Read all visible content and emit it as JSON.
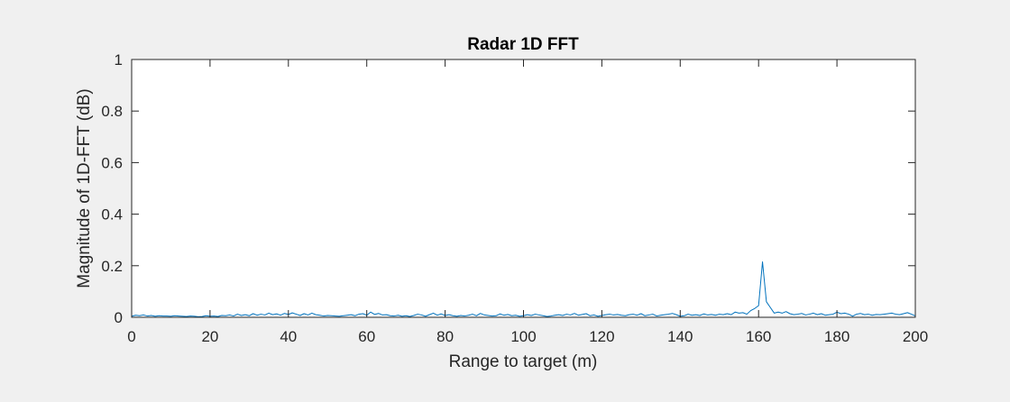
{
  "chart_data": {
    "type": "line",
    "title": "Radar 1D FFT",
    "xlabel": "Range to target (m)",
    "ylabel": "Magnitude of 1D-FFT (dB)",
    "xlim": [
      0,
      200
    ],
    "ylim": [
      0,
      1
    ],
    "xticks": [
      0,
      20,
      40,
      60,
      80,
      100,
      120,
      140,
      160,
      180,
      200
    ],
    "yticks": [
      0,
      0.2,
      0.4,
      0.6,
      0.8,
      1
    ],
    "grid": false,
    "legend": "none",
    "colors": {
      "line": "#0072bd",
      "axes": "#262626",
      "background": "#f0f0f0",
      "plot_area": "#ffffff"
    },
    "series": [
      {
        "x": [
          0,
          1,
          2,
          3,
          4,
          5,
          6,
          7,
          8,
          9,
          10,
          11,
          12,
          13,
          14,
          15,
          16,
          17,
          18,
          19,
          20,
          21,
          22,
          23,
          24,
          25,
          26,
          27,
          28,
          29,
          30,
          31,
          32,
          33,
          34,
          35,
          36,
          37,
          38,
          39,
          40,
          41,
          42,
          43,
          44,
          45,
          46,
          47,
          48,
          49,
          50,
          51,
          52,
          53,
          54,
          55,
          56,
          57,
          58,
          59,
          60,
          61,
          62,
          63,
          64,
          65,
          66,
          67,
          68,
          69,
          70,
          71,
          72,
          73,
          74,
          75,
          76,
          77,
          78,
          79,
          80,
          81,
          82,
          83,
          84,
          85,
          86,
          87,
          88,
          89,
          90,
          91,
          92,
          93,
          94,
          95,
          96,
          97,
          98,
          99,
          100,
          101,
          102,
          103,
          104,
          105,
          106,
          107,
          108,
          109,
          110,
          111,
          112,
          113,
          114,
          115,
          116,
          117,
          118,
          119,
          120,
          121,
          122,
          123,
          124,
          125,
          126,
          127,
          128,
          129,
          130,
          131,
          132,
          133,
          134,
          135,
          136,
          137,
          138,
          139,
          140,
          141,
          142,
          143,
          144,
          145,
          146,
          147,
          148,
          149,
          150,
          151,
          152,
          153,
          154,
          155,
          156,
          157,
          158,
          159,
          160,
          161,
          162,
          163,
          164,
          165,
          166,
          167,
          168,
          169,
          170,
          171,
          172,
          173,
          174,
          175,
          176,
          177,
          178,
          179,
          180,
          181,
          182,
          183,
          184,
          185,
          186,
          187,
          188,
          189,
          190,
          191,
          192,
          193,
          194,
          195,
          196,
          197,
          198,
          199,
          200
        ],
        "y": [
          0.004,
          0.008,
          0.006,
          0.009,
          0.005,
          0.007,
          0.004,
          0.006,
          0.005,
          0.005,
          0.004,
          0.006,
          0.005,
          0.004,
          0.003,
          0.005,
          0.004,
          0.002,
          0.003,
          0.006,
          0.004,
          0.005,
          0.003,
          0.007,
          0.006,
          0.009,
          0.005,
          0.012,
          0.007,
          0.01,
          0.006,
          0.014,
          0.008,
          0.012,
          0.009,
          0.016,
          0.01,
          0.013,
          0.008,
          0.015,
          0.011,
          0.017,
          0.012,
          0.007,
          0.014,
          0.009,
          0.016,
          0.01,
          0.008,
          0.005,
          0.007,
          0.006,
          0.005,
          0.004,
          0.006,
          0.008,
          0.01,
          0.006,
          0.012,
          0.014,
          0.008,
          0.02,
          0.011,
          0.015,
          0.009,
          0.01,
          0.006,
          0.005,
          0.008,
          0.004,
          0.006,
          0.003,
          0.007,
          0.012,
          0.009,
          0.004,
          0.01,
          0.016,
          0.008,
          0.013,
          0.007,
          0.01,
          0.006,
          0.004,
          0.007,
          0.005,
          0.008,
          0.012,
          0.006,
          0.015,
          0.009,
          0.007,
          0.005,
          0.006,
          0.013,
          0.008,
          0.011,
          0.006,
          0.008,
          0.004,
          0.006,
          0.01,
          0.007,
          0.012,
          0.009,
          0.006,
          0.003,
          0.005,
          0.008,
          0.01,
          0.007,
          0.012,
          0.009,
          0.015,
          0.008,
          0.011,
          0.014,
          0.006,
          0.009,
          0.004,
          0.007,
          0.01,
          0.012,
          0.009,
          0.011,
          0.008,
          0.006,
          0.01,
          0.012,
          0.008,
          0.014,
          0.006,
          0.009,
          0.012,
          0.005,
          0.008,
          0.01,
          0.012,
          0.015,
          0.01,
          0.004,
          0.006,
          0.012,
          0.008,
          0.01,
          0.007,
          0.013,
          0.009,
          0.011,
          0.008,
          0.012,
          0.01,
          0.014,
          0.01,
          0.02,
          0.016,
          0.018,
          0.012,
          0.026,
          0.034,
          0.045,
          0.215,
          0.06,
          0.038,
          0.016,
          0.02,
          0.016,
          0.022,
          0.014,
          0.01,
          0.012,
          0.015,
          0.009,
          0.012,
          0.016,
          0.01,
          0.014,
          0.008,
          0.01,
          0.012,
          0.02,
          0.014,
          0.016,
          0.012,
          0.004,
          0.012,
          0.015,
          0.01,
          0.012,
          0.008,
          0.011,
          0.01,
          0.012,
          0.014,
          0.016,
          0.012,
          0.01,
          0.014,
          0.018,
          0.012,
          0.005
        ]
      }
    ]
  }
}
